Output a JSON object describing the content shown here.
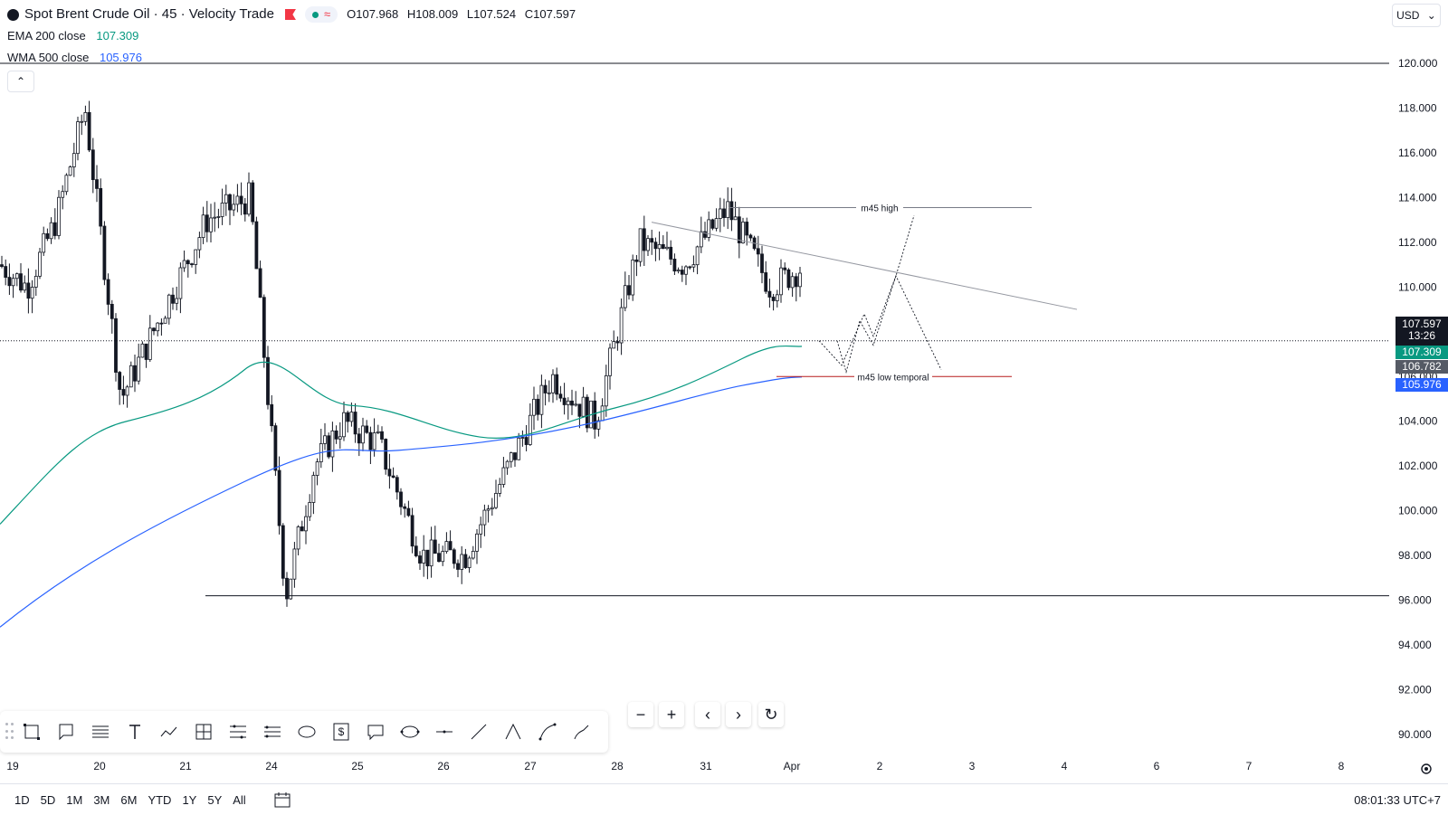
{
  "header": {
    "symbol_title": "Spot Brent Crude Oil · 45 · Velocity Trade",
    "ohlc": {
      "o_label": "O",
      "o": "107.968",
      "h_label": "H",
      "h": "108.009",
      "l_label": "L",
      "l": "107.524",
      "c_label": "C",
      "c": "107.597"
    },
    "currency": "USD"
  },
  "indicators": [
    {
      "name": "EMA",
      "params": "200 close",
      "value": "107.309",
      "color": "#089981"
    },
    {
      "name": "WMA",
      "params": "500 close",
      "value": "105.976",
      "color": "#2962ff"
    }
  ],
  "price_axis": {
    "ticks": [
      "120.000",
      "118.000",
      "116.000",
      "114.000",
      "112.000",
      "110.000",
      "108.000",
      "106.000",
      "104.000",
      "102.000",
      "100.000",
      "98.000",
      "96.000",
      "94.000",
      "92.000",
      "90.000"
    ],
    "labels": {
      "last_price": "107.597",
      "countdown": "13:26",
      "ema": "107.309",
      "level": "106.782",
      "wma": "105.976"
    }
  },
  "time_axis": {
    "ticks": [
      "19",
      "20",
      "21",
      "24",
      "25",
      "26",
      "27",
      "28",
      "31",
      "Apr",
      "2",
      "3",
      "4",
      "6",
      "7",
      "8"
    ]
  },
  "annotations": {
    "high_label": "m45 high",
    "low_label": "m45 low temporal"
  },
  "bottom_bar": {
    "ranges": [
      "1D",
      "5D",
      "1M",
      "3M",
      "6M",
      "YTD",
      "1Y",
      "5Y",
      "All"
    ],
    "clock": "08:01:33 UTC+7"
  },
  "colors": {
    "ema": "#089981",
    "wma": "#2962ff",
    "up": "#131722",
    "level_line": "#b71c1c"
  },
  "chart_data": {
    "type": "candlestick",
    "ylim": [
      90,
      120
    ],
    "series": [
      {
        "name": "EMA",
        "values": []
      },
      {
        "name": "WMA",
        "values": []
      }
    ],
    "price_points": [
      {
        "x": "19",
        "y": 110
      },
      {
        "x": "19",
        "y": 113
      },
      {
        "x": "19",
        "y": 118
      },
      {
        "x": "20",
        "y": 105
      },
      {
        "x": "20",
        "y": 109
      },
      {
        "x": "21",
        "y": 113
      },
      {
        "x": "21",
        "y": 114
      },
      {
        "x": "24",
        "y": 96.2
      },
      {
        "x": "24",
        "y": 102
      },
      {
        "x": "24",
        "y": 104
      },
      {
        "x": "25",
        "y": 103
      },
      {
        "x": "25",
        "y": 98
      },
      {
        "x": "26",
        "y": 98
      },
      {
        "x": "26",
        "y": 102
      },
      {
        "x": "27",
        "y": 106
      },
      {
        "x": "27",
        "y": 104
      },
      {
        "x": "28",
        "y": 112
      },
      {
        "x": "28",
        "y": 111
      },
      {
        "x": "31",
        "y": 113.5
      },
      {
        "x": "31",
        "y": 110
      },
      {
        "x": "Apr",
        "y": 111
      },
      {
        "x": "Apr",
        "y": 106
      },
      {
        "x": "Apr",
        "y": 107.6
      }
    ]
  }
}
